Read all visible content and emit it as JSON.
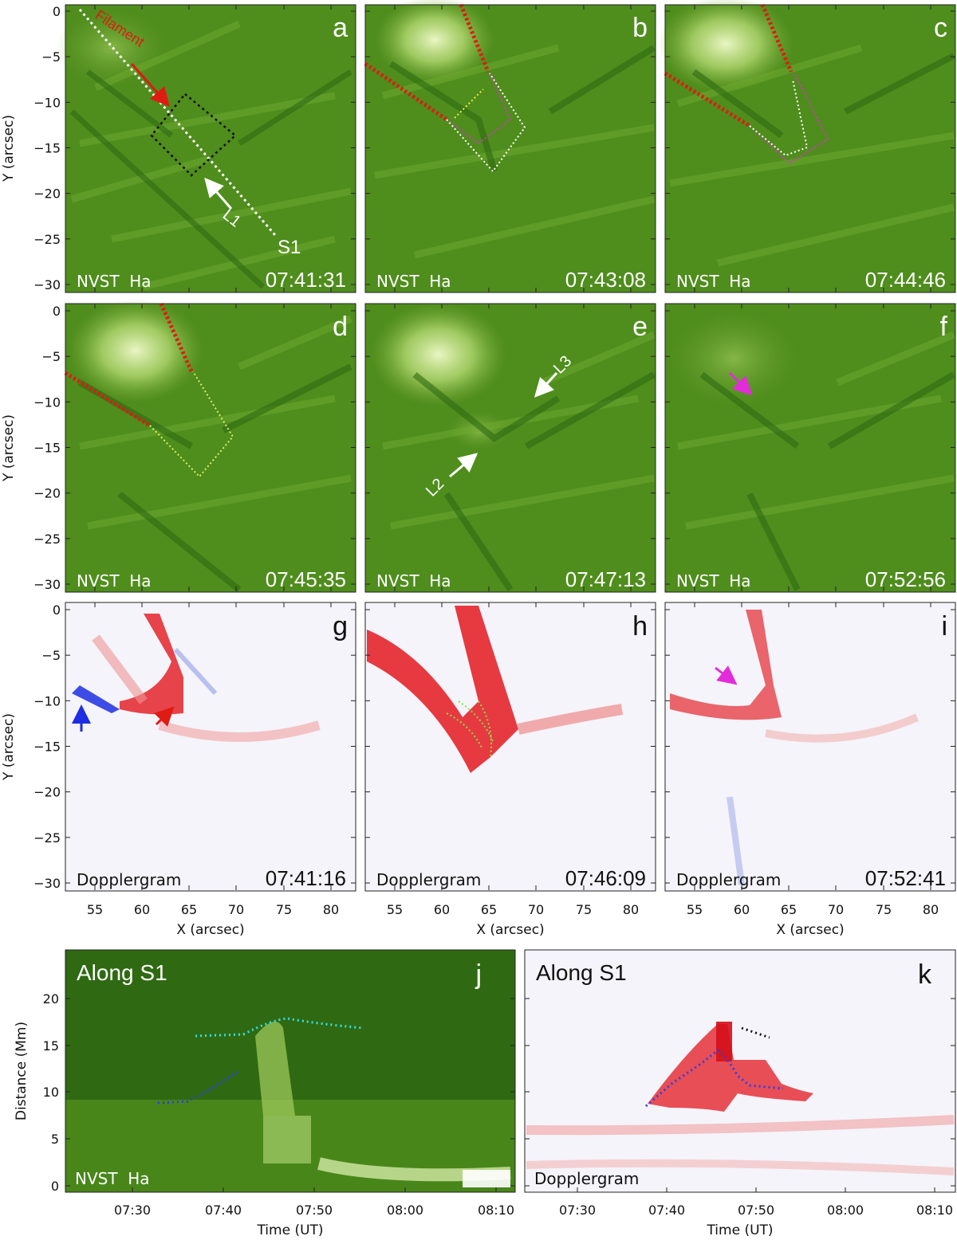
{
  "colors": {
    "halpha_dark": "#2f6a12",
    "halpha_mid": "#5c9a24",
    "halpha_bright": "#c9e48a",
    "doppler_red": "#e4171e",
    "doppler_blue": "#1c2ee0",
    "doppler_bg": "#f6f6fb",
    "filament_dots": "#e01b12",
    "cyan_dots": "#34e0e6",
    "blue_dots": "#2a3fe6",
    "magenta_arrow": "#e22cd9",
    "green_dots": "#88e04a"
  },
  "axes": {
    "y_title": "Y (arcsec)",
    "x_title": "X (arcsec)",
    "y_ticks": [
      "0",
      "−5",
      "−10",
      "−15",
      "−20",
      "−25",
      "−30"
    ],
    "x_ticks": [
      "55",
      "60",
      "65",
      "70",
      "75",
      "80"
    ],
    "distance_title": "Distance (Mm)",
    "distance_ticks": [
      "0",
      "5",
      "10",
      "15",
      "20"
    ],
    "time_title": "Time (UT)",
    "time_ticks": [
      "07:30",
      "07:40",
      "07:50",
      "08:00",
      "08:10"
    ]
  },
  "panels": [
    {
      "letter": "a",
      "kind": "halpha",
      "instrument": "NVST  Ha",
      "time": "07:41:31"
    },
    {
      "letter": "b",
      "kind": "halpha",
      "instrument": "NVST  Ha",
      "time": "07:43:08"
    },
    {
      "letter": "c",
      "kind": "halpha",
      "instrument": "NVST  Ha",
      "time": "07:44:46"
    },
    {
      "letter": "d",
      "kind": "halpha",
      "instrument": "NVST  Ha",
      "time": "07:45:35"
    },
    {
      "letter": "e",
      "kind": "halpha",
      "instrument": "NVST  Ha",
      "time": "07:47:13"
    },
    {
      "letter": "f",
      "kind": "halpha",
      "instrument": "NVST  Ha",
      "time": "07:52:56"
    },
    {
      "letter": "g",
      "kind": "doppler",
      "instrument": "Dopplergram",
      "time": "07:41:16"
    },
    {
      "letter": "h",
      "kind": "doppler",
      "instrument": "Dopplergram",
      "time": "07:46:09"
    },
    {
      "letter": "i",
      "kind": "doppler",
      "instrument": "Dopplergram",
      "time": "07:52:41"
    }
  ],
  "annotations": {
    "filament": "Filament",
    "slice": "S1",
    "loop1": "L1",
    "loop2": "L2",
    "loop3": "L3"
  },
  "timeslices": [
    {
      "letter": "j",
      "kind": "halpha",
      "title": "Along S1",
      "instrument": "NVST  Ha"
    },
    {
      "letter": "k",
      "kind": "doppler",
      "title": "Along S1",
      "instrument": "Dopplergram"
    }
  ]
}
